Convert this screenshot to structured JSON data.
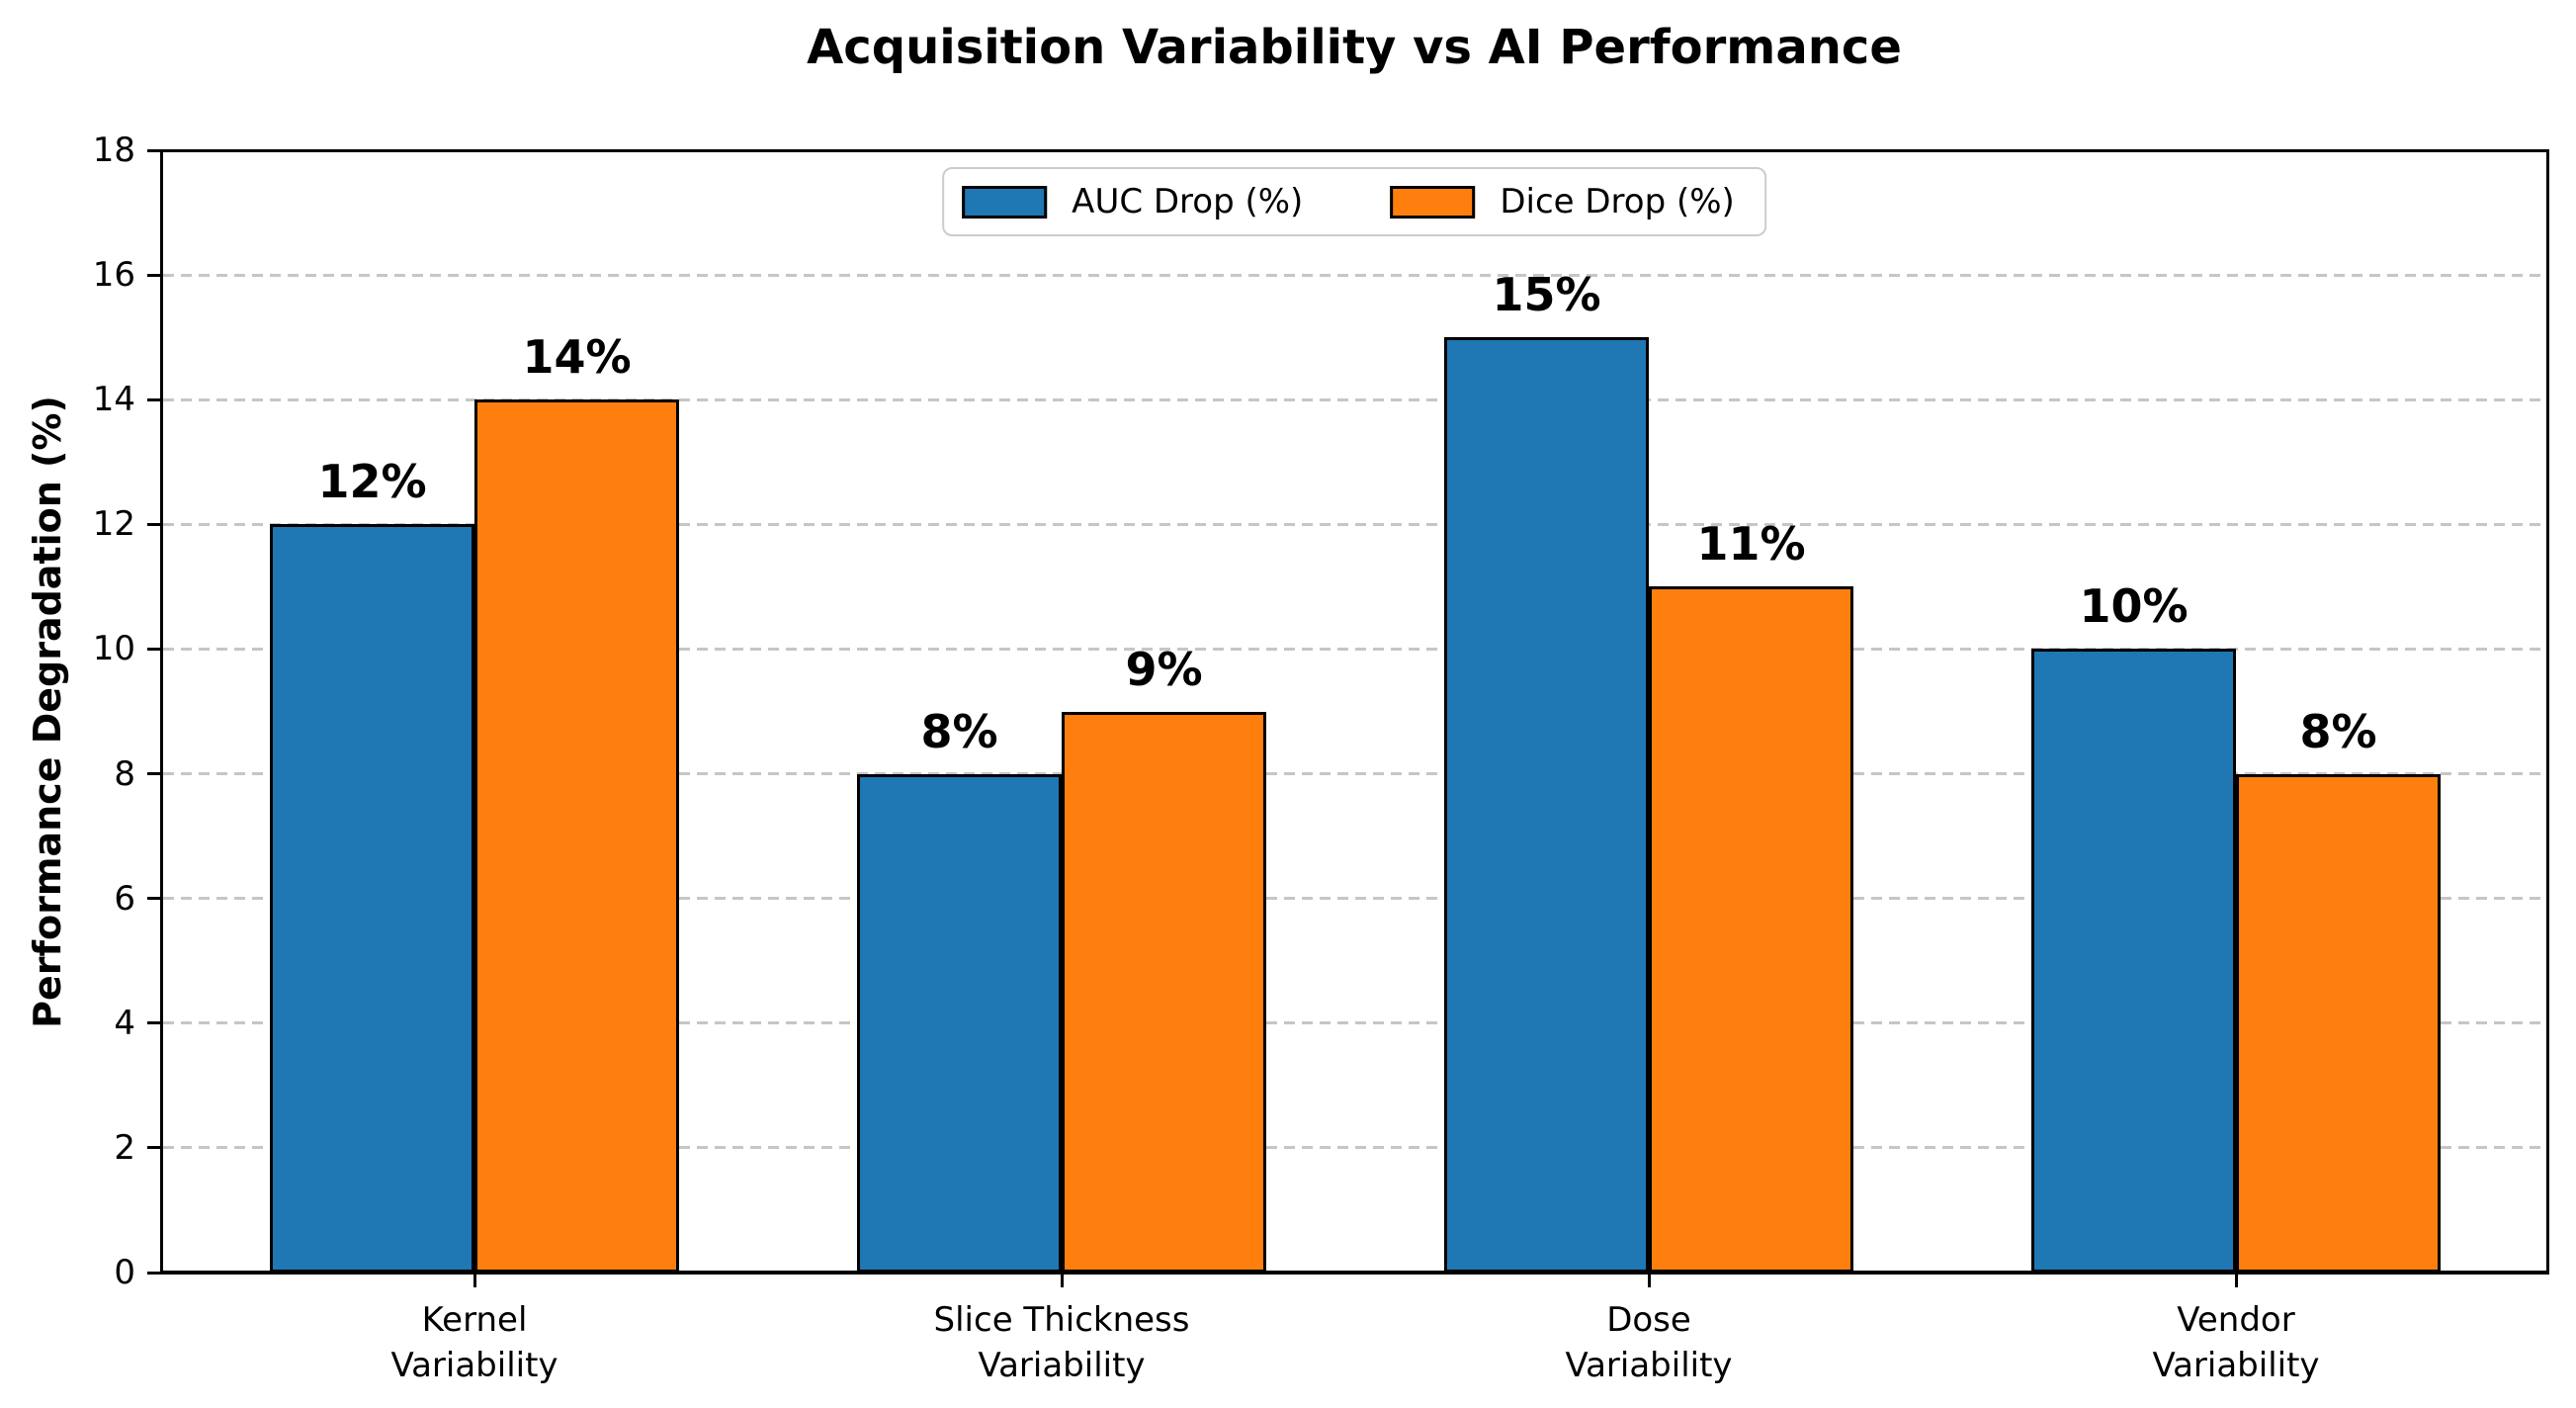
{
  "title": "Acquisition Variability vs AI Performance",
  "chart_data": {
    "type": "bar",
    "title": "Acquisition Variability vs AI Performance",
    "xlabel": "",
    "ylabel": "Performance Degradation (%)",
    "ylim": [
      0,
      18
    ],
    "yticks": [
      0,
      2,
      4,
      6,
      8,
      10,
      12,
      14,
      16,
      18
    ],
    "ytick_labels": [
      "0",
      "2",
      "4",
      "6",
      "8",
      "10",
      "12",
      "14",
      "16",
      "18"
    ],
    "categories": [
      "Kernel\nVariability",
      "Slice Thickness\nVariability",
      "Dose\nVariability",
      "Vendor\nVariability"
    ],
    "series": [
      {
        "name": "AUC Drop (%)",
        "color": "#1f77b4",
        "values": [
          12,
          8,
          15,
          10
        ],
        "data_labels": [
          "12%",
          "8%",
          "15%",
          "10%"
        ]
      },
      {
        "name": "Dice Drop (%)",
        "color": "#ff7f0e",
        "values": [
          14,
          9,
          11,
          8
        ],
        "data_labels": [
          "14%",
          "9%",
          "11%",
          "8%"
        ]
      }
    ],
    "grid": true,
    "grid_style": "dashed",
    "grid_color": "#c6c6c6",
    "bar_edge_color": "#000000",
    "legend_position": "upper center"
  }
}
